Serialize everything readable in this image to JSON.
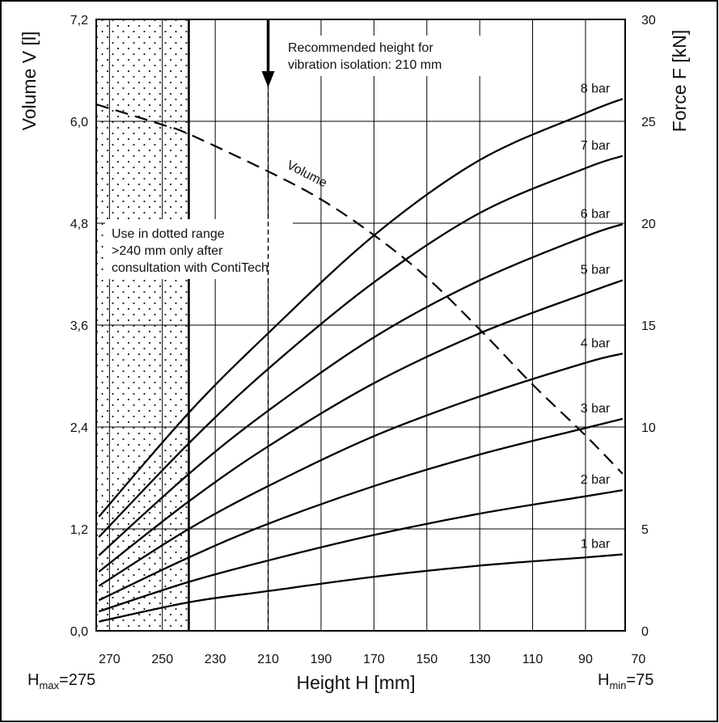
{
  "chart_data": {
    "type": "line",
    "xlabel": "Height H [mm]",
    "ylabel_left": "Volume V [l]",
    "ylabel_right": "Force F [kN]",
    "x_range": [
      275,
      75
    ],
    "x_ticks": [
      270,
      250,
      230,
      210,
      190,
      170,
      150,
      130,
      110,
      90,
      70
    ],
    "y_left_range": [
      0,
      7.2
    ],
    "y_left_ticks": [
      "0,0",
      "1,2",
      "2,4",
      "3,6",
      "4,8",
      "6,0",
      "7,2"
    ],
    "y_right_range": [
      0,
      30
    ],
    "y_right_ticks": [
      "0",
      "5",
      "10",
      "15",
      "20",
      "25",
      "30"
    ],
    "grid": true,
    "hmax_label": {
      "prefix": "H",
      "sub": "max",
      "suffix": "=275"
    },
    "hmin_label": {
      "prefix": "H",
      "sub": "min",
      "suffix": "=75"
    },
    "dotted_range": {
      "from": 275,
      "to": 240
    },
    "recommended_height": 210,
    "recommended_note": [
      "Recommended height for",
      "vibration isolation: 210 mm"
    ],
    "dotted_note": [
      "Use in dotted range",
      ">240 mm only after",
      "consultation with ContiTech"
    ],
    "force_series": [
      {
        "name": "1 bar",
        "x": [
          274,
          240,
          210,
          170,
          130,
          90,
          76
        ],
        "values": [
          0.45,
          1.4,
          1.95,
          2.65,
          3.2,
          3.6,
          3.75
        ]
      },
      {
        "name": "2 bar",
        "x": [
          274,
          240,
          210,
          170,
          130,
          90,
          76
        ],
        "values": [
          0.95,
          2.4,
          3.45,
          4.7,
          5.75,
          6.6,
          6.9
        ]
      },
      {
        "name": "3 bar",
        "x": [
          274,
          240,
          210,
          170,
          130,
          90,
          76
        ],
        "values": [
          1.5,
          3.6,
          5.25,
          7.1,
          8.65,
          9.95,
          10.4
        ]
      },
      {
        "name": "4 bar",
        "x": [
          274,
          240,
          210,
          170,
          130,
          90,
          76
        ],
        "values": [
          2.2,
          5.0,
          7.1,
          9.55,
          11.5,
          13.15,
          13.6
        ]
      },
      {
        "name": "5 bar",
        "x": [
          274,
          240,
          210,
          170,
          130,
          90,
          76
        ],
        "values": [
          2.9,
          6.35,
          9.05,
          12.15,
          14.6,
          16.55,
          17.2
        ]
      },
      {
        "name": "6 bar",
        "x": [
          274,
          240,
          210,
          170,
          130,
          90,
          76
        ],
        "values": [
          3.7,
          7.7,
          10.8,
          14.4,
          17.2,
          19.35,
          19.95
        ]
      },
      {
        "name": "7 bar",
        "x": [
          274,
          240,
          210,
          170,
          130,
          90,
          76
        ],
        "values": [
          4.6,
          9.2,
          12.85,
          17.1,
          20.5,
          22.7,
          23.3
        ]
      },
      {
        "name": "8 bar",
        "x": [
          274,
          240,
          210,
          170,
          130,
          90,
          76
        ],
        "values": [
          5.6,
          10.7,
          14.6,
          19.4,
          23.1,
          25.4,
          26.1
        ]
      }
    ],
    "volume_series": {
      "name": "Volume",
      "x": [
        275,
        250,
        240,
        210,
        190,
        170,
        150,
        130,
        110,
        90,
        76
      ],
      "values": [
        6.2,
        5.96,
        5.85,
        5.41,
        5.08,
        4.66,
        4.16,
        3.55,
        2.9,
        2.3,
        1.85
      ]
    }
  }
}
